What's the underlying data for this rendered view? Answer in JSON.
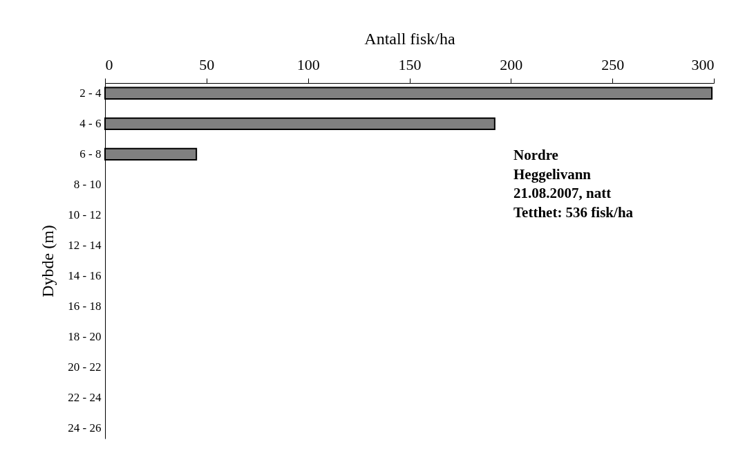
{
  "chart_data": {
    "type": "bar",
    "orientation": "horizontal",
    "xlabel": "Antall fisk/ha",
    "ylabel": "Dybde (m)",
    "categories": [
      "2 - 4",
      "4 - 6",
      "6 - 8",
      "8 - 10",
      "10 - 12",
      "12 - 14",
      "14 - 16",
      "16 - 18",
      "18 - 20",
      "20 - 22",
      "22 - 24",
      "24 - 26"
    ],
    "values": [
      299,
      192,
      45,
      null,
      null,
      null,
      null,
      null,
      null,
      null,
      null,
      null
    ],
    "color": "#808080",
    "xlim": [
      0,
      300
    ],
    "xticks": [
      0,
      50,
      100,
      150,
      200,
      250,
      300
    ],
    "grid": false,
    "annotations": [
      "Nordre",
      "Heggelivann",
      "21.08.2007, natt",
      "Tetthet: 536 fisk/ha"
    ]
  }
}
